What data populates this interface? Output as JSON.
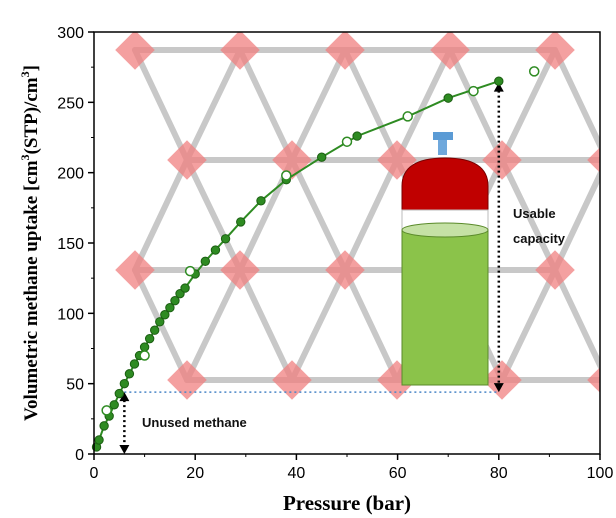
{
  "chart_data": {
    "type": "scatter",
    "xlabel": "Pressure (bar)",
    "ylabel_parts": {
      "main": "Volumetric methane uptake [cm",
      "sup1": "3",
      "mid": "(STP)/cm",
      "sup2": "3",
      "end": "]"
    },
    "xlim": [
      0,
      100
    ],
    "ylim": [
      0,
      300
    ],
    "xticks": [
      0,
      20,
      40,
      60,
      80,
      100
    ],
    "yticks": [
      0,
      50,
      100,
      150,
      200,
      250,
      300
    ],
    "grid": false,
    "series": [
      {
        "marker": "filled",
        "color": "#2e8b22",
        "x": [
          0.5,
          1,
          2,
          3,
          4,
          5,
          6,
          7,
          8,
          9,
          10,
          11,
          12,
          13,
          14,
          15,
          16,
          17,
          18,
          20,
          22,
          24,
          26,
          29,
          33,
          38,
          45,
          52,
          62,
          70,
          80
        ],
        "y": [
          5,
          10,
          20,
          27,
          35,
          43,
          50,
          57,
          64,
          70,
          76,
          82,
          88,
          94,
          99,
          104,
          109,
          114,
          118,
          128,
          137,
          145,
          153,
          165,
          180,
          195,
          211,
          226,
          240,
          253,
          265
        ]
      },
      {
        "marker": "open",
        "color": "#2e8b22",
        "x": [
          2.5,
          10,
          19,
          38,
          50,
          62,
          75,
          87
        ],
        "y": [
          31,
          70,
          130,
          198,
          222,
          240,
          258,
          272
        ]
      }
    ],
    "threshold_y": 44,
    "annotations": {
      "usable": [
        "Usable",
        "capacity"
      ],
      "unused": "Unused methane"
    },
    "colors": {
      "line": "#2e8b22",
      "threshold": "#4a86c8",
      "tank_cap": "#c00000",
      "tank_body": "#8bc34a",
      "framework_nodes": "#f08080",
      "framework_links": "#c8c8c8"
    }
  }
}
